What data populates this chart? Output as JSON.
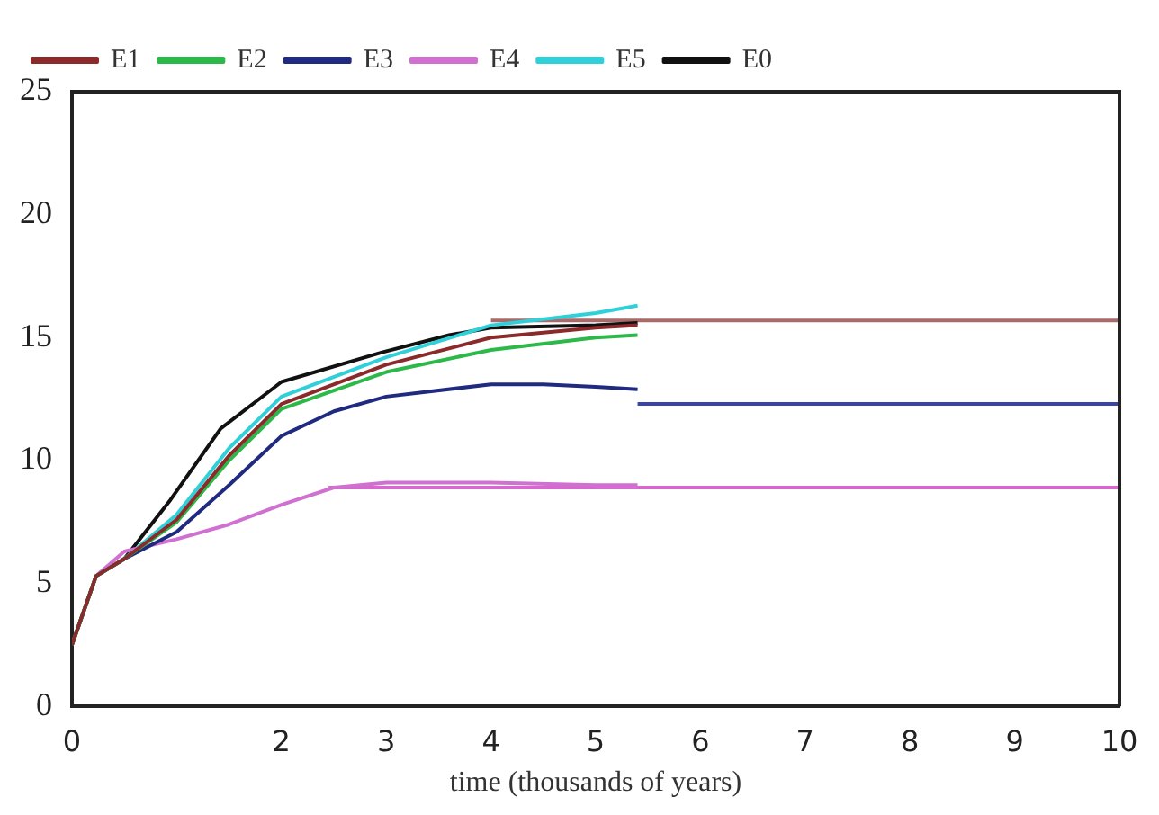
{
  "chart_data": {
    "type": "line",
    "xlabel": "time (thousands of years)",
    "xlim": [
      0,
      10
    ],
    "xticks": [
      0,
      2,
      3,
      4,
      5,
      6,
      7,
      8,
      9,
      10
    ],
    "ylim": [
      0,
      25
    ],
    "yticks": [
      0,
      5,
      10,
      15,
      20,
      25
    ],
    "grid": false,
    "legend": "top left",
    "marker": "none",
    "series": [
      {
        "name": "E1",
        "color": "#8b2a2a",
        "x": [
          0,
          0.23,
          0.5,
          1,
          1.5,
          2,
          3,
          4,
          5,
          5.4
        ],
        "values": [
          2.5,
          5.3,
          6.0,
          7.6,
          10.2,
          12.3,
          13.9,
          15.0,
          15.4,
          15.5
        ]
      },
      {
        "name": "E2",
        "color": "#2db84a",
        "x": [
          0,
          0.23,
          0.5,
          1,
          1.5,
          2,
          3,
          4,
          5,
          5.4
        ],
        "values": [
          2.5,
          5.3,
          6.0,
          7.5,
          10.0,
          12.1,
          13.6,
          14.5,
          15.0,
          15.1
        ]
      },
      {
        "name": "E3",
        "color": "#1f2a80",
        "x": [
          0,
          0.23,
          0.5,
          1,
          1.5,
          2,
          2.5,
          3,
          4,
          4.5,
          5,
          5.4
        ],
        "values": [
          2.5,
          5.3,
          6.0,
          7.1,
          9.0,
          11.0,
          12.0,
          12.6,
          13.1,
          13.1,
          13.0,
          12.9
        ]
      },
      {
        "name": "E4",
        "color": "#d070d0",
        "x": [
          0.23,
          0.5,
          1,
          1.5,
          2,
          2.5,
          3,
          4,
          5,
          5.4
        ],
        "values": [
          5.3,
          6.3,
          6.8,
          7.4,
          8.2,
          8.9,
          9.1,
          9.1,
          9.0,
          9.0
        ]
      },
      {
        "name": "E5",
        "color": "#30d0d8",
        "x": [
          0,
          0.23,
          0.5,
          1,
          1.5,
          2,
          3,
          4,
          5,
          5.4
        ],
        "values": [
          2.5,
          5.3,
          6.0,
          7.8,
          10.5,
          12.6,
          14.2,
          15.5,
          16.0,
          16.3
        ]
      },
      {
        "name": "E0",
        "color": "#111111",
        "x": [
          0,
          0.23,
          0.5,
          0.94,
          1.42,
          2,
          2.96,
          3.6,
          4,
          5,
          5.4
        ],
        "values": [
          2.5,
          5.3,
          6.0,
          8.4,
          11.3,
          13.2,
          14.4,
          15.1,
          15.4,
          15.5,
          15.6
        ]
      },
      {
        "color": "#a86a6a",
        "x": [
          4,
          10
        ],
        "values": [
          15.7,
          15.7
        ]
      },
      {
        "color": "#3a44a8",
        "x": [
          5.4,
          10
        ],
        "values": [
          12.3,
          12.3
        ]
      },
      {
        "color": "#d868d0",
        "x": [
          2.45,
          10
        ],
        "values": [
          8.9,
          8.9
        ]
      }
    ]
  }
}
